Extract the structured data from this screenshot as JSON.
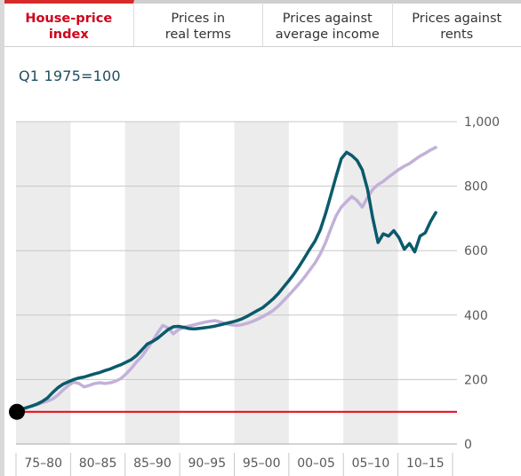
{
  "tabs": [
    {
      "label": "House-price\nindex",
      "active": true
    },
    {
      "label": "Prices in\nreal terms",
      "active": false
    },
    {
      "label": "Prices against\naverage income",
      "active": false
    },
    {
      "label": "Prices against\nrents",
      "active": false
    }
  ],
  "colors": {
    "series_primary": "#0b5a6b",
    "series_secondary": "#c2b1d9",
    "baseline": "#e30613",
    "band": "#ececec",
    "grid": "#c8c8c8"
  },
  "chart_data": {
    "type": "line",
    "unit_label": "Q1 1975=100",
    "x_range": [
      1975.0,
      2016.6
    ],
    "ylim": [
      0,
      1000
    ],
    "yticks": [
      0,
      200,
      400,
      600,
      800,
      1000
    ],
    "ytick_labels": [
      "0",
      "200",
      "400",
      "600",
      "800",
      "1,000"
    ],
    "periods": [
      "75–80",
      "80–85",
      "85–90",
      "90–95",
      "95–00",
      "00–05",
      "05–10",
      "10–15"
    ],
    "shaded_periods": [
      0,
      2,
      4,
      6
    ],
    "baseline": 100,
    "start_marker": {
      "x": 1975.0,
      "y": 100
    },
    "series": [
      {
        "color_key": "series_primary",
        "points": [
          [
            1975.0,
            100
          ],
          [
            1975.5,
            108
          ],
          [
            1976.0,
            113
          ],
          [
            1976.5,
            118
          ],
          [
            1977.0,
            124
          ],
          [
            1977.5,
            132
          ],
          [
            1978.0,
            143
          ],
          [
            1978.5,
            160
          ],
          [
            1979.0,
            175
          ],
          [
            1979.5,
            186
          ],
          [
            1980.0,
            193
          ],
          [
            1980.5,
            200
          ],
          [
            1981.0,
            205
          ],
          [
            1981.5,
            208
          ],
          [
            1982.0,
            213
          ],
          [
            1982.5,
            218
          ],
          [
            1983.0,
            222
          ],
          [
            1983.5,
            228
          ],
          [
            1984.0,
            233
          ],
          [
            1984.5,
            240
          ],
          [
            1985.0,
            246
          ],
          [
            1985.5,
            254
          ],
          [
            1986.0,
            262
          ],
          [
            1986.5,
            275
          ],
          [
            1987.0,
            292
          ],
          [
            1987.5,
            310
          ],
          [
            1988.0,
            318
          ],
          [
            1988.5,
            328
          ],
          [
            1989.0,
            342
          ],
          [
            1989.5,
            355
          ],
          [
            1990.0,
            364
          ],
          [
            1990.5,
            365
          ],
          [
            1991.0,
            362
          ],
          [
            1991.5,
            358
          ],
          [
            1992.0,
            357
          ],
          [
            1992.5,
            359
          ],
          [
            1993.0,
            361
          ],
          [
            1993.5,
            363
          ],
          [
            1994.0,
            366
          ],
          [
            1994.5,
            370
          ],
          [
            1995.0,
            374
          ],
          [
            1995.5,
            378
          ],
          [
            1996.0,
            382
          ],
          [
            1996.5,
            388
          ],
          [
            1997.0,
            396
          ],
          [
            1997.5,
            405
          ],
          [
            1998.0,
            414
          ],
          [
            1998.5,
            423
          ],
          [
            1999.0,
            436
          ],
          [
            1999.5,
            450
          ],
          [
            2000.0,
            467
          ],
          [
            2000.5,
            487
          ],
          [
            2001.0,
            507
          ],
          [
            2001.5,
            528
          ],
          [
            2002.0,
            552
          ],
          [
            2002.5,
            578
          ],
          [
            2003.0,
            605
          ],
          [
            2003.5,
            630
          ],
          [
            2004.0,
            665
          ],
          [
            2004.5,
            715
          ],
          [
            2005.0,
            772
          ],
          [
            2005.5,
            830
          ],
          [
            2006.0,
            885
          ],
          [
            2006.5,
            905
          ],
          [
            2007.0,
            895
          ],
          [
            2007.5,
            880
          ],
          [
            2008.0,
            850
          ],
          [
            2008.5,
            790
          ],
          [
            2009.0,
            700
          ],
          [
            2009.5,
            625
          ],
          [
            2010.0,
            652
          ],
          [
            2010.5,
            645
          ],
          [
            2011.0,
            662
          ],
          [
            2011.5,
            640
          ],
          [
            2012.0,
            604
          ],
          [
            2012.5,
            622
          ],
          [
            2013.0,
            596
          ],
          [
            2013.5,
            645
          ],
          [
            2014.0,
            655
          ],
          [
            2014.5,
            690
          ],
          [
            2015.0,
            718
          ]
        ]
      },
      {
        "color_key": "series_secondary",
        "points": [
          [
            1975.0,
            100
          ],
          [
            1975.5,
            107
          ],
          [
            1976.0,
            112
          ],
          [
            1976.5,
            118
          ],
          [
            1977.0,
            122
          ],
          [
            1977.5,
            128
          ],
          [
            1978.0,
            133
          ],
          [
            1978.5,
            140
          ],
          [
            1979.0,
            152
          ],
          [
            1979.5,
            168
          ],
          [
            1980.0,
            182
          ],
          [
            1980.5,
            192
          ],
          [
            1981.0,
            188
          ],
          [
            1981.5,
            177
          ],
          [
            1982.0,
            182
          ],
          [
            1982.5,
            188
          ],
          [
            1983.0,
            190
          ],
          [
            1983.5,
            188
          ],
          [
            1984.0,
            190
          ],
          [
            1984.5,
            195
          ],
          [
            1985.0,
            203
          ],
          [
            1985.5,
            218
          ],
          [
            1986.0,
            235
          ],
          [
            1986.5,
            255
          ],
          [
            1987.0,
            272
          ],
          [
            1987.5,
            295
          ],
          [
            1988.0,
            318
          ],
          [
            1988.5,
            345
          ],
          [
            1989.0,
            368
          ],
          [
            1989.5,
            360
          ],
          [
            1990.0,
            342
          ],
          [
            1990.5,
            355
          ],
          [
            1991.0,
            362
          ],
          [
            1991.5,
            366
          ],
          [
            1992.0,
            370
          ],
          [
            1992.5,
            374
          ],
          [
            1993.0,
            378
          ],
          [
            1993.5,
            381
          ],
          [
            1994.0,
            383
          ],
          [
            1994.5,
            378
          ],
          [
            1995.0,
            373
          ],
          [
            1995.5,
            370
          ],
          [
            1996.0,
            368
          ],
          [
            1996.5,
            370
          ],
          [
            1997.0,
            374
          ],
          [
            1997.5,
            380
          ],
          [
            1998.0,
            387
          ],
          [
            1998.5,
            395
          ],
          [
            1999.0,
            404
          ],
          [
            1999.5,
            414
          ],
          [
            2000.0,
            428
          ],
          [
            2000.5,
            445
          ],
          [
            2001.0,
            462
          ],
          [
            2001.5,
            480
          ],
          [
            2002.0,
            498
          ],
          [
            2002.5,
            518
          ],
          [
            2003.0,
            540
          ],
          [
            2003.5,
            562
          ],
          [
            2004.0,
            590
          ],
          [
            2004.5,
            625
          ],
          [
            2005.0,
            668
          ],
          [
            2005.5,
            708
          ],
          [
            2006.0,
            735
          ],
          [
            2006.5,
            752
          ],
          [
            2007.0,
            768
          ],
          [
            2007.5,
            755
          ],
          [
            2008.0,
            735
          ],
          [
            2008.5,
            765
          ],
          [
            2009.0,
            790
          ],
          [
            2009.5,
            805
          ],
          [
            2010.0,
            815
          ],
          [
            2010.5,
            828
          ],
          [
            2011.0,
            840
          ],
          [
            2011.5,
            852
          ],
          [
            2012.0,
            862
          ],
          [
            2012.5,
            870
          ],
          [
            2013.0,
            882
          ],
          [
            2013.5,
            893
          ],
          [
            2014.0,
            902
          ],
          [
            2014.5,
            912
          ],
          [
            2015.0,
            920
          ]
        ]
      }
    ]
  }
}
